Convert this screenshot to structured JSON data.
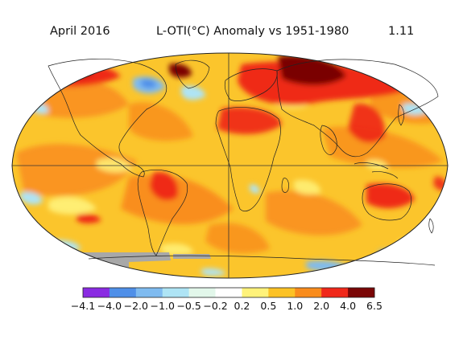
{
  "header": {
    "date": "April 2016",
    "title": "L-OTI(°C) Anomaly vs 1951-1980",
    "global_mean": "1.11"
  },
  "legend": {
    "bins": [
      {
        "color": "#8a2be2"
      },
      {
        "color": "#4f8fe8"
      },
      {
        "color": "#7fbbf0"
      },
      {
        "color": "#aee4f5"
      },
      {
        "color": "#e2f7ea"
      },
      {
        "color": "#ffffff"
      },
      {
        "color": "#fff27a"
      },
      {
        "color": "#fcc225"
      },
      {
        "color": "#f98c1c"
      },
      {
        "color": "#f0281a"
      },
      {
        "color": "#7a0606"
      }
    ],
    "ticks": [
      "−4.1",
      "−4.0",
      "−2.0",
      "−1.0",
      "−0.5",
      "−0.2",
      "0.2",
      "0.5",
      "1.0",
      "2.0",
      "4.0",
      "6.5"
    ]
  },
  "colors": {
    "ocean_base": "#fbc52c",
    "land_base": "#f98c1c",
    "warm_orange": "#f97f16",
    "hot_red": "#ef2a16",
    "extreme": "#7a0606",
    "cool_blue": "#7fbbf0",
    "pale_cyan": "#aee4f5",
    "yellow": "#fff27a",
    "no_data": "#a8a8a8",
    "coastline": "#222222"
  }
}
